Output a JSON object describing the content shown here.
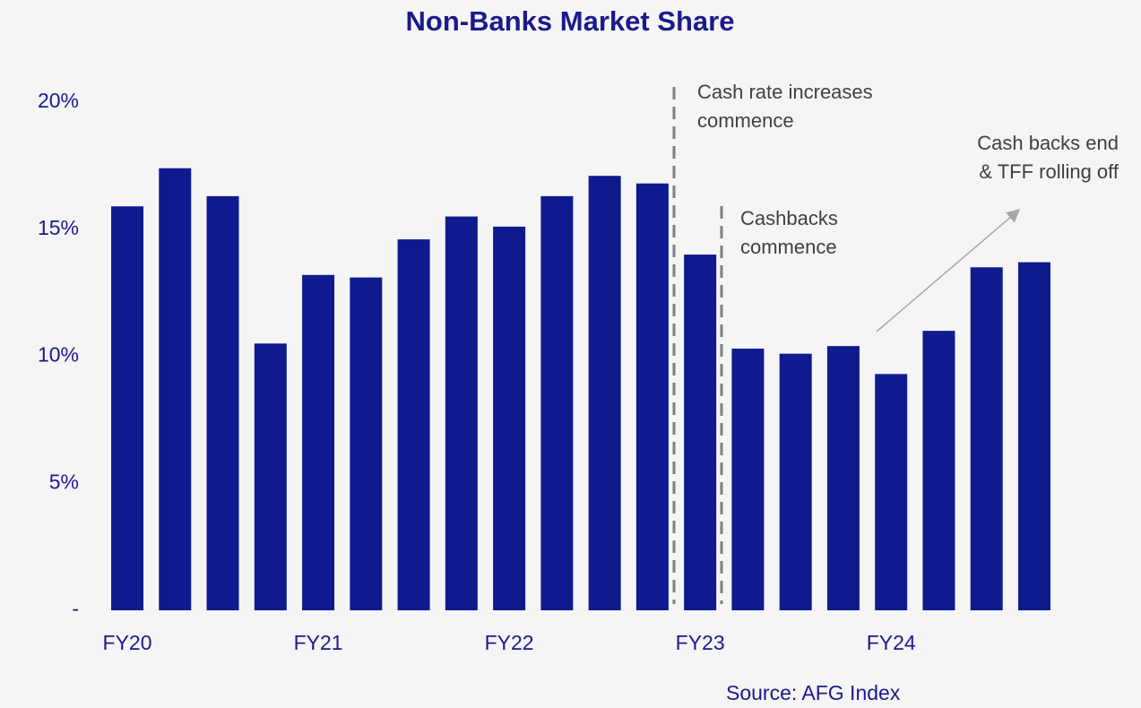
{
  "chart_data": {
    "type": "bar",
    "title": "Non-Banks Market Share",
    "categories": [
      "FY20",
      null,
      null,
      null,
      "FY21",
      null,
      null,
      null,
      "FY22",
      null,
      null,
      null,
      "FY23",
      null,
      null,
      null,
      "FY24",
      null,
      null,
      null
    ],
    "values": [
      15.9,
      17.4,
      16.3,
      10.5,
      13.2,
      13.1,
      14.6,
      15.5,
      15.1,
      16.3,
      17.1,
      16.8,
      14.0,
      10.3,
      10.1,
      10.4,
      9.3,
      11.0,
      13.5,
      13.7
    ],
    "color": "#0f1a8f",
    "ylim": [
      0,
      20
    ],
    "yticks": [
      {
        "value": 0,
        "label": "-"
      },
      {
        "value": 5,
        "label": "5%"
      },
      {
        "value": 10,
        "label": "10%"
      },
      {
        "value": 15,
        "label": "15%"
      },
      {
        "value": 20,
        "label": "20%"
      }
    ],
    "grid": false,
    "annotations": [
      {
        "lines": [
          "Cash rate increases",
          "commence"
        ]
      },
      {
        "lines": [
          "Cashbacks",
          "commence"
        ]
      },
      {
        "lines": [
          "Cash backs end",
          "& TFF rolling off"
        ]
      }
    ],
    "source": "Source: AFG Index"
  }
}
